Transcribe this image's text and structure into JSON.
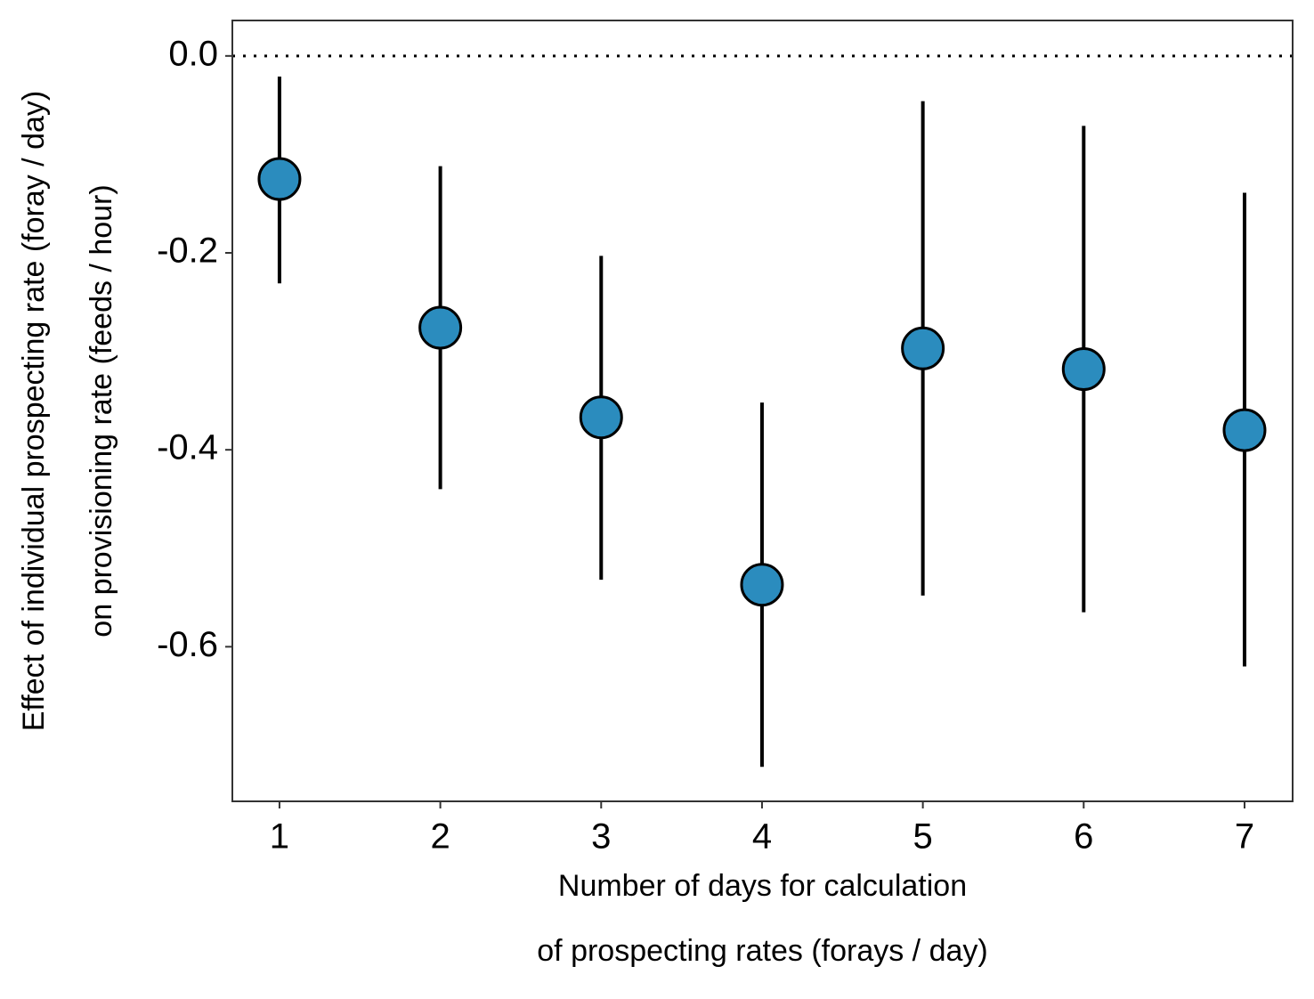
{
  "chart_data": {
    "type": "pointrange",
    "xlabel": [
      "Number of days for calculation",
      "of prospecting rates (forays / day)"
    ],
    "ylabel": [
      "Effect of individual prospecting rate (foray / day)",
      "on provisioning rate (feeds / hour)"
    ],
    "x": [
      1,
      2,
      3,
      4,
      5,
      6,
      7
    ],
    "series": [
      {
        "color": "#2b8cbe",
        "values": [
          -0.125,
          -0.276,
          -0.367,
          -0.537,
          -0.297,
          -0.318,
          -0.38
        ],
        "lower": [
          -0.231,
          -0.44,
          -0.532,
          -0.722,
          -0.548,
          -0.565,
          -0.62
        ],
        "upper": [
          -0.021,
          -0.112,
          -0.203,
          -0.352,
          -0.046,
          -0.071,
          -0.139
        ]
      }
    ],
    "xlim": [
      0.707,
      7.299
    ],
    "xticks": [
      1,
      2,
      3,
      4,
      5,
      6,
      7
    ],
    "ylim": [
      -0.757,
      0.036
    ],
    "yticks": [
      {
        "value": 0,
        "label": "0.0"
      },
      -0.2,
      -0.4,
      -0.6
    ],
    "hline": 0
  }
}
